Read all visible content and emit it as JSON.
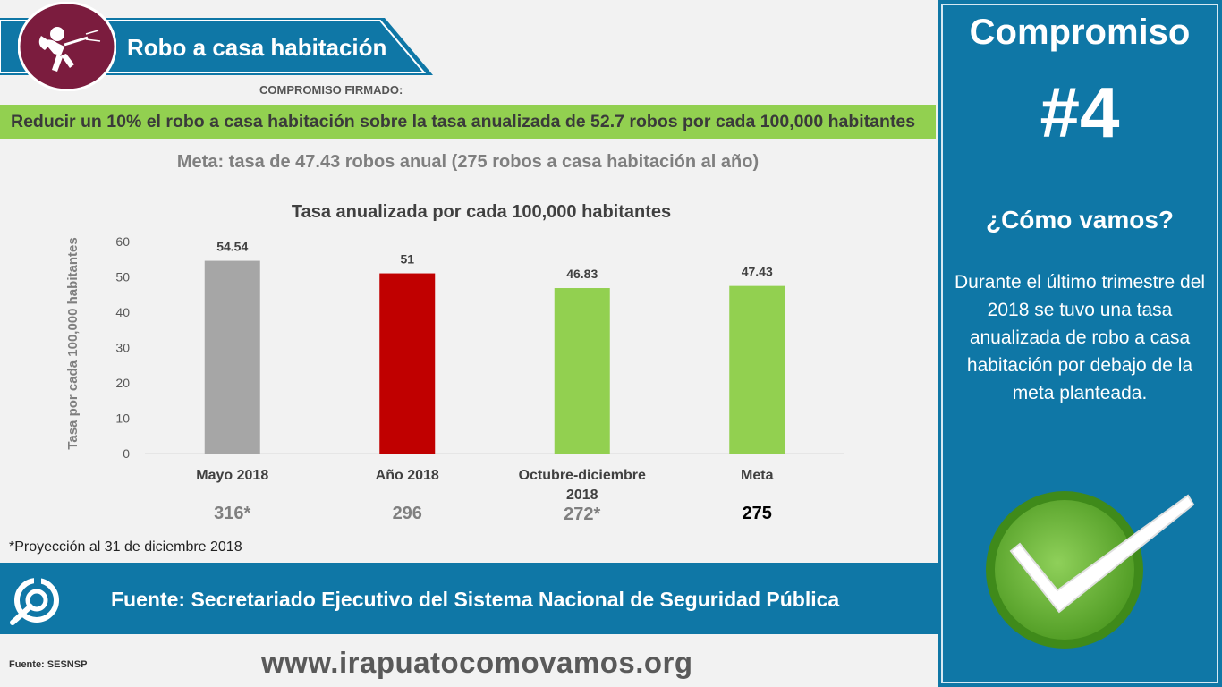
{
  "header": {
    "title": "Robo a casa habitación",
    "signed_label": "COMPROMISO FIRMADO:",
    "icon": "burglar-icon"
  },
  "commitment_text": "Reducir un 10% el robo a casa habitación sobre la tasa anualizada de 52.7 robos por cada 100,000 habitantes",
  "goal_text": "Meta: tasa de 47.43 robos anual (275 robos a casa habitación al año)",
  "chart_data": {
    "type": "bar",
    "title": "Tasa anualizada por cada 100,000 habitantes",
    "ylabel": "Tasa por cada 100,000 habitantes",
    "xlabel": "",
    "categories": [
      "Mayo 2018",
      "Año 2018",
      "Octubre-diciembre 2018",
      "Meta"
    ],
    "category_lines": [
      [
        "Mayo 2018"
      ],
      [
        "Año 2018"
      ],
      [
        "Octubre-diciembre",
        "2018"
      ],
      [
        "Meta"
      ]
    ],
    "values": [
      54.54,
      51,
      46.83,
      47.43
    ],
    "value_labels": [
      "54.54",
      "51",
      "46.83",
      "47.43"
    ],
    "colors": [
      "#a6a6a6",
      "#c00000",
      "#92d050",
      "#92d050"
    ],
    "counts": [
      "316*",
      "296",
      "272*",
      "275"
    ],
    "count_colors": [
      "#7f7f7f",
      "#7f7f7f",
      "#7f7f7f",
      "#000000"
    ],
    "ylim": [
      0,
      60
    ],
    "yticks": [
      0,
      10,
      20,
      30,
      40,
      50,
      60
    ],
    "grid": false,
    "legend": "none"
  },
  "footnote": "*Proyección al 31 de diciembre 2018",
  "source": {
    "text": "Fuente: Secretariado Ejecutivo del Sistema Nacional de Seguridad Pública",
    "small": "Fuente: SESNSP",
    "icon": "irapuato-logo-icon"
  },
  "website": "www.irapuatocomovamos.org",
  "panel": {
    "title": "Compromiso",
    "number": "#4",
    "question": "¿Cómo vamos?",
    "status": "Durante el último trimestre del 2018 se tuvo una tasa anualizada de robo a casa habitación por debajo de la meta planteada.",
    "icon": "check-icon"
  },
  "colors": {
    "brand_blue": "#0f77a6",
    "brand_maroon": "#7b1c3e",
    "banner_green": "#92d050"
  }
}
